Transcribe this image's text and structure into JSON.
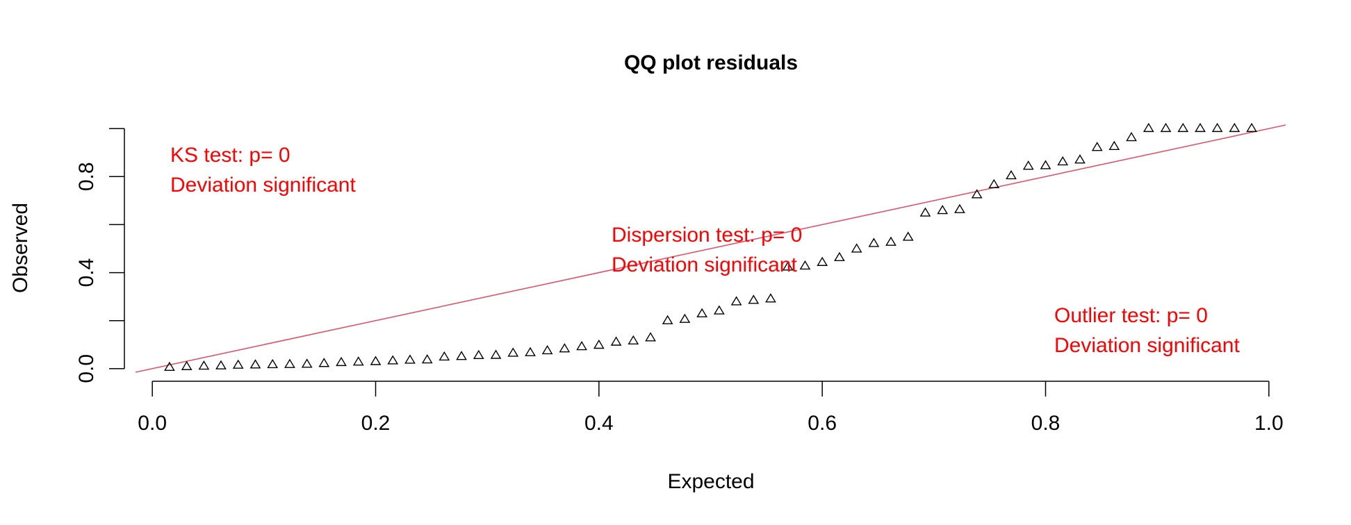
{
  "chart_data": {
    "type": "scatter",
    "title": "QQ plot residuals",
    "xlabel": "Expected",
    "ylabel": "Observed",
    "xlim": [
      -0.025,
      1.025
    ],
    "ylim": [
      -0.015,
      1.015
    ],
    "x_ticks": [
      0.0,
      0.2,
      0.4,
      0.6,
      0.8,
      1.0
    ],
    "x_tick_labels": [
      "0.0",
      "0.2",
      "0.4",
      "0.6",
      "0.8",
      "1.0"
    ],
    "y_ticks": [
      0.0,
      0.2,
      0.4,
      0.6,
      0.8,
      1.0
    ],
    "y_tick_labels": [
      "0.0",
      "",
      "0.4",
      "",
      "0.8",
      ""
    ],
    "marker": "open-triangle",
    "marker_color": "#000000",
    "reference_line": {
      "from": [
        0,
        0
      ],
      "to": [
        1,
        1
      ],
      "color": "#df536b"
    },
    "grid": false,
    "series": [
      {
        "x": [
          0.0154,
          0.0308,
          0.0462,
          0.0615,
          0.0769,
          0.0923,
          0.1077,
          0.1231,
          0.1385,
          0.1538,
          0.1692,
          0.1846,
          0.2,
          0.2154,
          0.2308,
          0.2462,
          0.2615,
          0.2769,
          0.2923,
          0.3077,
          0.3231,
          0.3385,
          0.3538,
          0.3692,
          0.3846,
          0.4,
          0.4154,
          0.4308,
          0.4462,
          0.4615,
          0.4769,
          0.4923,
          0.5077,
          0.5231,
          0.5385,
          0.5538,
          0.5692,
          0.5846,
          0.6,
          0.6154,
          0.6308,
          0.6462,
          0.6615,
          0.6769,
          0.6923,
          0.7077,
          0.7231,
          0.7385,
          0.7538,
          0.7692,
          0.7846,
          0.8,
          0.8154,
          0.8308,
          0.8462,
          0.8615,
          0.8769,
          0.8923,
          0.9077,
          0.9231,
          0.9385,
          0.9538,
          0.9692,
          0.9846
        ],
        "y": [
          0.005,
          0.008,
          0.01,
          0.011,
          0.014,
          0.015,
          0.016,
          0.017,
          0.018,
          0.021,
          0.025,
          0.027,
          0.029,
          0.032,
          0.035,
          0.036,
          0.048,
          0.05,
          0.054,
          0.055,
          0.064,
          0.066,
          0.074,
          0.082,
          0.091,
          0.097,
          0.11,
          0.115,
          0.128,
          0.199,
          0.205,
          0.228,
          0.24,
          0.278,
          0.284,
          0.29,
          0.423,
          0.427,
          0.442,
          0.462,
          0.498,
          0.521,
          0.526,
          0.547,
          0.648,
          0.658,
          0.662,
          0.724,
          0.766,
          0.803,
          0.843,
          0.845,
          0.861,
          0.869,
          0.921,
          0.925,
          0.962,
          1.0,
          1.0,
          1.0,
          1.0,
          1.0,
          1.0,
          1.0
        ]
      }
    ],
    "annotations": [
      {
        "id": "ks",
        "lines": [
          "KS test: p= 0",
          "Deviation  significant"
        ]
      },
      {
        "id": "dispersion",
        "lines": [
          "Dispersion test: p= 0",
          "Deviation  significant"
        ]
      },
      {
        "id": "outlier",
        "lines": [
          "Outlier test: p= 0",
          "Deviation  significant"
        ]
      }
    ]
  }
}
